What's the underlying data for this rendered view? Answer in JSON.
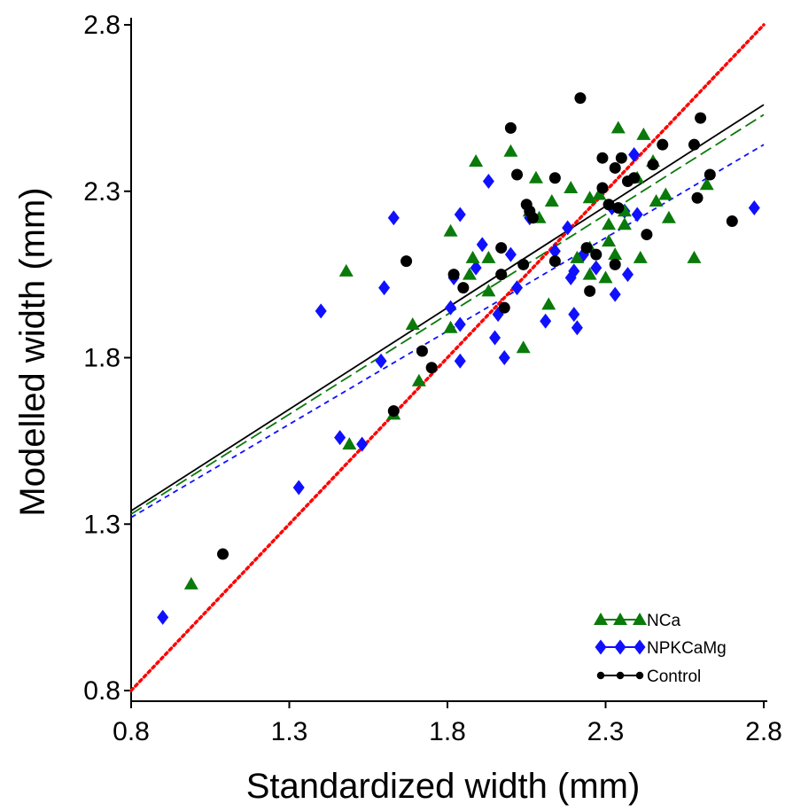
{
  "chart_data": {
    "type": "scatter",
    "xlabel": "Standardized width (mm)",
    "ylabel": "Modelled width (mm)",
    "xlim": [
      0.8,
      2.8
    ],
    "ylim": [
      0.8,
      2.8
    ],
    "x_ticks": [
      "0.8",
      "1.3",
      "1.8",
      "2.3",
      "2.8"
    ],
    "y_ticks": [
      "0.8",
      "1.3",
      "1.8",
      "2.3",
      "2.8"
    ],
    "grid": false,
    "legend_position": "bottom-right",
    "reference_line": {
      "style": "dotted",
      "color": "#ff0000",
      "from": [
        0.8,
        0.8
      ],
      "to": [
        2.8,
        2.8
      ]
    },
    "series": [
      {
        "name": "NCa",
        "marker": "triangle",
        "color": "#0a7a0a",
        "fit": {
          "style": "long-dash",
          "from": [
            0.8,
            1.33
          ],
          "to": [
            2.8,
            2.53
          ]
        },
        "points": [
          [
            0.99,
            1.12
          ],
          [
            1.48,
            2.06
          ],
          [
            1.49,
            1.54
          ],
          [
            1.63,
            1.63
          ],
          [
            1.69,
            1.9
          ],
          [
            1.71,
            1.73
          ],
          [
            1.81,
            2.18
          ],
          [
            1.81,
            1.89
          ],
          [
            1.87,
            2.05
          ],
          [
            1.88,
            2.1
          ],
          [
            1.89,
            2.39
          ],
          [
            1.93,
            2.1
          ],
          [
            1.93,
            2.0
          ],
          [
            2.0,
            2.42
          ],
          [
            2.04,
            1.83
          ],
          [
            2.06,
            2.24
          ],
          [
            2.08,
            2.34
          ],
          [
            2.09,
            2.22
          ],
          [
            2.12,
            1.96
          ],
          [
            2.13,
            2.27
          ],
          [
            2.19,
            2.31
          ],
          [
            2.21,
            2.1
          ],
          [
            2.25,
            2.05
          ],
          [
            2.25,
            2.13
          ],
          [
            2.25,
            2.28
          ],
          [
            2.28,
            2.29
          ],
          [
            2.3,
            2.04
          ],
          [
            2.31,
            2.2
          ],
          [
            2.31,
            2.15
          ],
          [
            2.33,
            2.11
          ],
          [
            2.34,
            2.49
          ],
          [
            2.36,
            2.24
          ],
          [
            2.36,
            2.2
          ],
          [
            2.4,
            2.34
          ],
          [
            2.41,
            2.1
          ],
          [
            2.42,
            2.47
          ],
          [
            2.45,
            2.39
          ],
          [
            2.46,
            2.27
          ],
          [
            2.49,
            2.29
          ],
          [
            2.5,
            2.22
          ],
          [
            2.58,
            2.1
          ],
          [
            2.62,
            2.32
          ]
        ]
      },
      {
        "name": "NPKCaMg",
        "marker": "diamond",
        "color": "#1010ff",
        "fit": {
          "style": "short-dash",
          "from": [
            0.8,
            1.32
          ],
          "to": [
            2.8,
            2.44
          ]
        },
        "points": [
          [
            0.9,
            1.02
          ],
          [
            1.33,
            1.41
          ],
          [
            1.4,
            1.94
          ],
          [
            1.46,
            1.56
          ],
          [
            1.53,
            1.54
          ],
          [
            1.59,
            1.79
          ],
          [
            1.6,
            2.01
          ],
          [
            1.63,
            2.22
          ],
          [
            1.81,
            1.95
          ],
          [
            1.82,
            2.04
          ],
          [
            1.84,
            1.9
          ],
          [
            1.84,
            2.23
          ],
          [
            1.84,
            1.79
          ],
          [
            1.89,
            2.07
          ],
          [
            1.91,
            2.14
          ],
          [
            1.93,
            2.33
          ],
          [
            1.95,
            1.86
          ],
          [
            1.96,
            1.93
          ],
          [
            1.98,
            1.8
          ],
          [
            2.0,
            2.11
          ],
          [
            2.02,
            2.01
          ],
          [
            2.06,
            2.22
          ],
          [
            2.11,
            1.91
          ],
          [
            2.14,
            2.12
          ],
          [
            2.18,
            2.19
          ],
          [
            2.19,
            2.04
          ],
          [
            2.2,
            2.06
          ],
          [
            2.2,
            1.93
          ],
          [
            2.21,
            1.89
          ],
          [
            2.23,
            2.11
          ],
          [
            2.27,
            2.07
          ],
          [
            2.32,
            2.25
          ],
          [
            2.33,
            1.99
          ],
          [
            2.36,
            2.24
          ],
          [
            2.37,
            2.05
          ],
          [
            2.39,
            2.41
          ],
          [
            2.4,
            2.23
          ],
          [
            2.77,
            2.25
          ]
        ]
      },
      {
        "name": "Control",
        "marker": "circle",
        "color": "#000000",
        "fit": {
          "style": "solid",
          "from": [
            0.8,
            1.34
          ],
          "to": [
            2.8,
            2.56
          ]
        },
        "points": [
          [
            1.09,
            1.21
          ],
          [
            1.63,
            1.64
          ],
          [
            1.67,
            2.09
          ],
          [
            1.72,
            1.82
          ],
          [
            1.75,
            1.77
          ],
          [
            1.82,
            2.05
          ],
          [
            1.85,
            2.01
          ],
          [
            1.97,
            2.13
          ],
          [
            1.97,
            2.05
          ],
          [
            1.98,
            1.95
          ],
          [
            2.0,
            2.49
          ],
          [
            2.02,
            2.35
          ],
          [
            2.04,
            2.08
          ],
          [
            2.05,
            2.26
          ],
          [
            2.06,
            2.24
          ],
          [
            2.07,
            2.22
          ],
          [
            2.14,
            2.09
          ],
          [
            2.14,
            2.34
          ],
          [
            2.22,
            2.58
          ],
          [
            2.24,
            2.13
          ],
          [
            2.25,
            2.0
          ],
          [
            2.27,
            2.11
          ],
          [
            2.29,
            2.31
          ],
          [
            2.29,
            2.4
          ],
          [
            2.31,
            2.26
          ],
          [
            2.33,
            2.08
          ],
          [
            2.33,
            2.37
          ],
          [
            2.35,
            2.4
          ],
          [
            2.34,
            2.25
          ],
          [
            2.37,
            2.33
          ],
          [
            2.39,
            2.34
          ],
          [
            2.43,
            2.17
          ],
          [
            2.45,
            2.38
          ],
          [
            2.48,
            2.44
          ],
          [
            2.58,
            2.44
          ],
          [
            2.59,
            2.28
          ],
          [
            2.6,
            2.52
          ],
          [
            2.63,
            2.35
          ],
          [
            2.7,
            2.21
          ]
        ]
      }
    ]
  }
}
